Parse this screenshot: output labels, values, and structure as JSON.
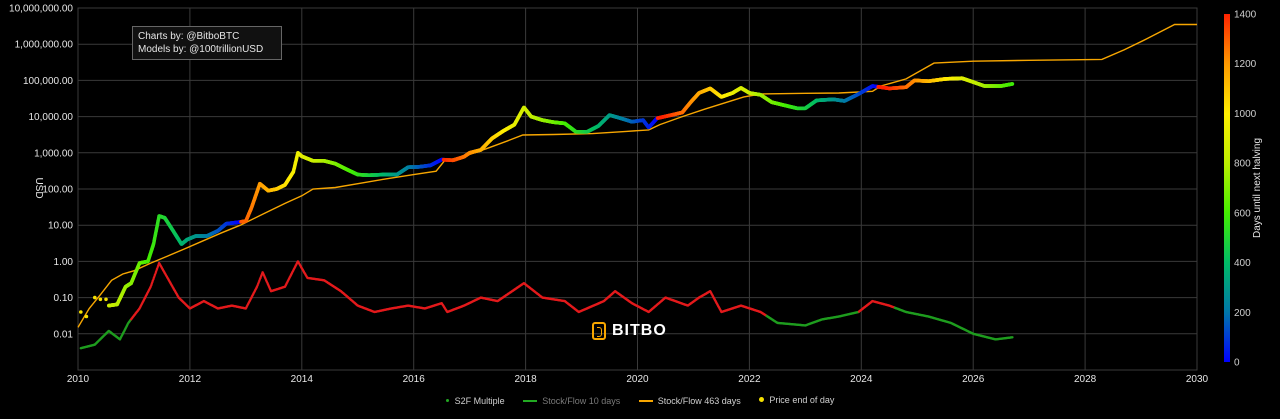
{
  "colors": {
    "background": "#000000",
    "grid": "#3a3a3a",
    "stock_flow_463": "#f7a600",
    "stock_flow_10": "#22aa22",
    "s2f_multiple": "#e31a1c",
    "price_dot": "#f5e000"
  },
  "credits": {
    "line1": "Charts by: @BitboBTC",
    "line2": "Models by: @100trillionUSD"
  },
  "logo": {
    "text": "BITBO"
  },
  "chart_data": {
    "type": "scatter",
    "title": "",
    "xlabel": "",
    "ylabel": "USD",
    "y_scale": "log",
    "xlim": [
      2010,
      2030
    ],
    "ylim": [
      0.001,
      10000000
    ],
    "x_ticks": [
      "2010",
      "2012",
      "2014",
      "2016",
      "2018",
      "2020",
      "2022",
      "2024",
      "2026",
      "2028",
      "2030"
    ],
    "y_ticks": [
      {
        "value": 10000000,
        "label": "10,000,000.00"
      },
      {
        "value": 1000000,
        "label": "1,000,000.00"
      },
      {
        "value": 100000,
        "label": "100,000.00"
      },
      {
        "value": 10000,
        "label": "10,000.00"
      },
      {
        "value": 1000,
        "label": "1,000.00"
      },
      {
        "value": 100,
        "label": "100.00"
      },
      {
        "value": 10,
        "label": "10.00"
      },
      {
        "value": 1,
        "label": "1.00"
      },
      {
        "value": 0.1,
        "label": "0.10"
      },
      {
        "value": 0.01,
        "label": "0.01"
      }
    ],
    "colorbar": {
      "title": "Days until next halving",
      "range": [
        0,
        1400
      ],
      "ticks": [
        0,
        200,
        400,
        600,
        800,
        1000,
        1200,
        1400
      ],
      "colors": [
        "#0000ff",
        "#0077aa",
        "#00bb66",
        "#44ee00",
        "#bbee00",
        "#ffee00",
        "#ff9900",
        "#ff2200"
      ]
    },
    "legend": {
      "position": "bottom-center",
      "items": [
        {
          "label": "S2F Multiple",
          "visible": true
        },
        {
          "label": "Stock/Flow 10 days",
          "visible": false
        },
        {
          "label": "Stock/Flow 463 days",
          "visible": true
        },
        {
          "label": "Price end of day",
          "visible": true
        }
      ]
    },
    "series": [
      {
        "name": "Price end of day",
        "points": [
          [
            2010.55,
            0.06
          ],
          [
            2010.7,
            0.065
          ],
          [
            2010.85,
            0.2
          ],
          [
            2010.95,
            0.25
          ],
          [
            2011.1,
            0.9
          ],
          [
            2011.25,
            1
          ],
          [
            2011.35,
            3
          ],
          [
            2011.45,
            18
          ],
          [
            2011.55,
            16
          ],
          [
            2011.7,
            7
          ],
          [
            2011.85,
            3
          ],
          [
            2011.95,
            4
          ],
          [
            2012.1,
            5
          ],
          [
            2012.3,
            5
          ],
          [
            2012.5,
            7
          ],
          [
            2012.65,
            11
          ],
          [
            2012.85,
            12
          ],
          [
            2013.0,
            13
          ],
          [
            2013.1,
            30
          ],
          [
            2013.25,
            140
          ],
          [
            2013.4,
            90
          ],
          [
            2013.55,
            100
          ],
          [
            2013.7,
            130
          ],
          [
            2013.85,
            300
          ],
          [
            2013.93,
            1000
          ],
          [
            2014.0,
            800
          ],
          [
            2014.2,
            600
          ],
          [
            2014.4,
            600
          ],
          [
            2014.6,
            500
          ],
          [
            2014.8,
            350
          ],
          [
            2015.0,
            250
          ],
          [
            2015.2,
            240
          ],
          [
            2015.45,
            250
          ],
          [
            2015.7,
            250
          ],
          [
            2015.9,
            400
          ],
          [
            2016.1,
            410
          ],
          [
            2016.3,
            450
          ],
          [
            2016.5,
            650
          ],
          [
            2016.7,
            620
          ],
          [
            2016.9,
            780
          ],
          [
            2017.0,
            1000
          ],
          [
            2017.2,
            1200
          ],
          [
            2017.4,
            2500
          ],
          [
            2017.6,
            4000
          ],
          [
            2017.8,
            6000
          ],
          [
            2017.97,
            18000
          ],
          [
            2018.1,
            10000
          ],
          [
            2018.3,
            8000
          ],
          [
            2018.5,
            7000
          ],
          [
            2018.7,
            6500
          ],
          [
            2018.9,
            3800
          ],
          [
            2019.1,
            3800
          ],
          [
            2019.3,
            5500
          ],
          [
            2019.5,
            11000
          ],
          [
            2019.7,
            9000
          ],
          [
            2019.9,
            7200
          ],
          [
            2020.1,
            8000
          ],
          [
            2020.2,
            5000
          ],
          [
            2020.35,
            9000
          ],
          [
            2020.6,
            11000
          ],
          [
            2020.8,
            13000
          ],
          [
            2020.95,
            25000
          ],
          [
            2021.1,
            45000
          ],
          [
            2021.3,
            60000
          ],
          [
            2021.5,
            35000
          ],
          [
            2021.7,
            45000
          ],
          [
            2021.85,
            62000
          ],
          [
            2022.0,
            45000
          ],
          [
            2022.2,
            40000
          ],
          [
            2022.4,
            25000
          ],
          [
            2022.6,
            21000
          ],
          [
            2022.85,
            17000
          ],
          [
            2023.0,
            17000
          ],
          [
            2023.2,
            28000
          ],
          [
            2023.5,
            30000
          ],
          [
            2023.7,
            27000
          ],
          [
            2023.95,
            42000
          ],
          [
            2024.2,
            70000
          ],
          [
            2024.5,
            60000
          ],
          [
            2024.8,
            65000
          ],
          [
            2024.95,
            100000
          ],
          [
            2025.2,
            95000
          ],
          [
            2025.5,
            110000
          ],
          [
            2025.8,
            115000
          ],
          [
            2026.0,
            90000
          ],
          [
            2026.2,
            70000
          ],
          [
            2026.5,
            70000
          ],
          [
            2026.7,
            80000
          ]
        ]
      },
      {
        "name": "Stock/Flow 463 days",
        "points": [
          [
            2010.0,
            0.015
          ],
          [
            2010.2,
            0.05
          ],
          [
            2010.4,
            0.12
          ],
          [
            2010.6,
            0.3
          ],
          [
            2010.8,
            0.45
          ],
          [
            2011.0,
            0.55
          ],
          [
            2011.3,
            0.9
          ],
          [
            2011.6,
            1.4
          ],
          [
            2011.9,
            2.2
          ],
          [
            2012.2,
            3.5
          ],
          [
            2012.55,
            6
          ],
          [
            2012.9,
            10
          ],
          [
            2013.3,
            20
          ],
          [
            2013.7,
            40
          ],
          [
            2014.0,
            65
          ],
          [
            2014.2,
            100
          ],
          [
            2014.6,
            110
          ],
          [
            2015.0,
            140
          ],
          [
            2015.5,
            190
          ],
          [
            2016.0,
            250
          ],
          [
            2016.4,
            310
          ],
          [
            2016.55,
            600
          ],
          [
            2016.9,
            800
          ],
          [
            2017.3,
            1300
          ],
          [
            2017.7,
            2200
          ],
          [
            2017.95,
            3100
          ],
          [
            2018.5,
            3200
          ],
          [
            2019.2,
            3400
          ],
          [
            2019.8,
            3900
          ],
          [
            2020.2,
            4300
          ],
          [
            2020.4,
            6000
          ],
          [
            2020.8,
            10000
          ],
          [
            2021.2,
            16000
          ],
          [
            2021.6,
            25000
          ],
          [
            2021.9,
            35000
          ],
          [
            2022.2,
            42000
          ],
          [
            2023.0,
            44000
          ],
          [
            2023.6,
            45000
          ],
          [
            2024.2,
            50000
          ],
          [
            2024.35,
            70000
          ],
          [
            2024.8,
            110000
          ],
          [
            2025.3,
            300000
          ],
          [
            2026.0,
            340000
          ],
          [
            2027.0,
            360000
          ],
          [
            2028.3,
            380000
          ],
          [
            2028.7,
            700000
          ],
          [
            2029.1,
            1400000
          ],
          [
            2029.6,
            3500000
          ],
          [
            2030.0,
            3500000
          ]
        ]
      },
      {
        "name": "S2F Multiple",
        "points": [
          [
            2010.05,
            0.004
          ],
          [
            2010.3,
            0.005
          ],
          [
            2010.55,
            0.012
          ],
          [
            2010.75,
            0.007
          ],
          [
            2010.9,
            0.02
          ],
          [
            2011.1,
            0.05
          ],
          [
            2011.3,
            0.2
          ],
          [
            2011.45,
            0.9
          ],
          [
            2011.6,
            0.35
          ],
          [
            2011.8,
            0.1
          ],
          [
            2012.0,
            0.05
          ],
          [
            2012.25,
            0.08
          ],
          [
            2012.5,
            0.05
          ],
          [
            2012.75,
            0.06
          ],
          [
            2013.0,
            0.05
          ],
          [
            2013.2,
            0.2
          ],
          [
            2013.3,
            0.5
          ],
          [
            2013.45,
            0.15
          ],
          [
            2013.7,
            0.2
          ],
          [
            2013.93,
            1.0
          ],
          [
            2014.1,
            0.35
          ],
          [
            2014.4,
            0.3
          ],
          [
            2014.7,
            0.15
          ],
          [
            2015.0,
            0.06
          ],
          [
            2015.3,
            0.04
          ],
          [
            2015.6,
            0.05
          ],
          [
            2015.9,
            0.06
          ],
          [
            2016.2,
            0.05
          ],
          [
            2016.5,
            0.07
          ],
          [
            2016.6,
            0.04
          ],
          [
            2016.9,
            0.06
          ],
          [
            2017.2,
            0.1
          ],
          [
            2017.5,
            0.08
          ],
          [
            2017.97,
            0.25
          ],
          [
            2018.3,
            0.1
          ],
          [
            2018.7,
            0.08
          ],
          [
            2018.95,
            0.04
          ],
          [
            2019.4,
            0.08
          ],
          [
            2019.6,
            0.15
          ],
          [
            2019.9,
            0.07
          ],
          [
            2020.2,
            0.04
          ],
          [
            2020.5,
            0.1
          ],
          [
            2020.9,
            0.06
          ],
          [
            2021.1,
            0.1
          ],
          [
            2021.3,
            0.15
          ],
          [
            2021.5,
            0.04
          ],
          [
            2021.85,
            0.06
          ],
          [
            2022.2,
            0.04
          ],
          [
            2022.5,
            0.02
          ],
          [
            2023.0,
            0.017
          ],
          [
            2023.3,
            0.025
          ],
          [
            2023.6,
            0.03
          ],
          [
            2023.95,
            0.04
          ],
          [
            2024.2,
            0.08
          ],
          [
            2024.5,
            0.06
          ],
          [
            2024.8,
            0.04
          ],
          [
            2025.2,
            0.03
          ],
          [
            2025.6,
            0.02
          ],
          [
            2026.0,
            0.01
          ],
          [
            2026.4,
            0.007
          ],
          [
            2026.7,
            0.008
          ]
        ]
      }
    ]
  }
}
